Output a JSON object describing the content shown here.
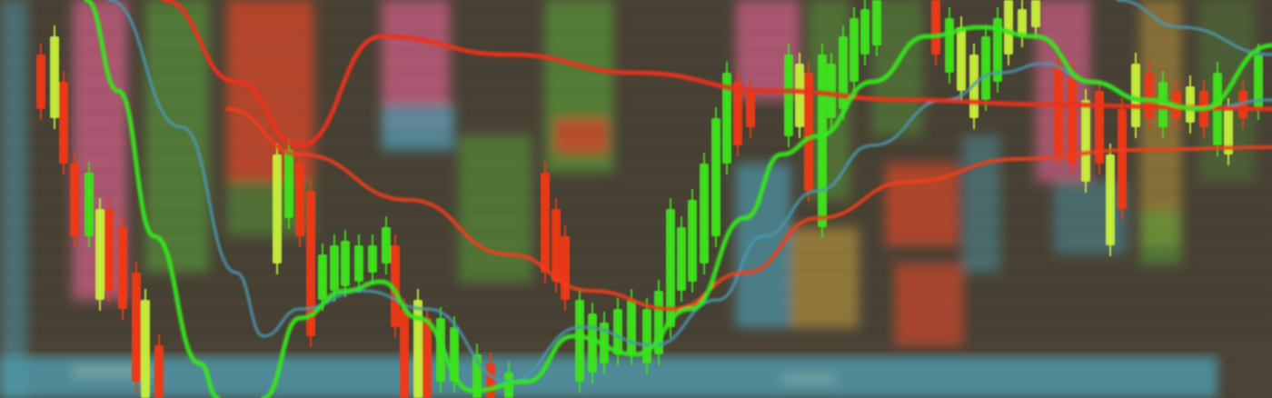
{
  "photo": {
    "subject": "",
    "palette": {
      "background": "#4a4336",
      "bull": "#3fe11f",
      "bull_alt": "#c6ee3c",
      "bear": "#ee3a14",
      "slow_average": "#e8321a",
      "mid_average": "#ec3f1f",
      "fast_average": "#35e61c",
      "trend_line": "#4c97b0",
      "panel_pink": "#c15e7e",
      "panel_teal": "#4f97a8",
      "panel_green": "#5ca23a",
      "panel_amber": "#b4923e",
      "panel_red": "#cc4a2c"
    }
  }
}
